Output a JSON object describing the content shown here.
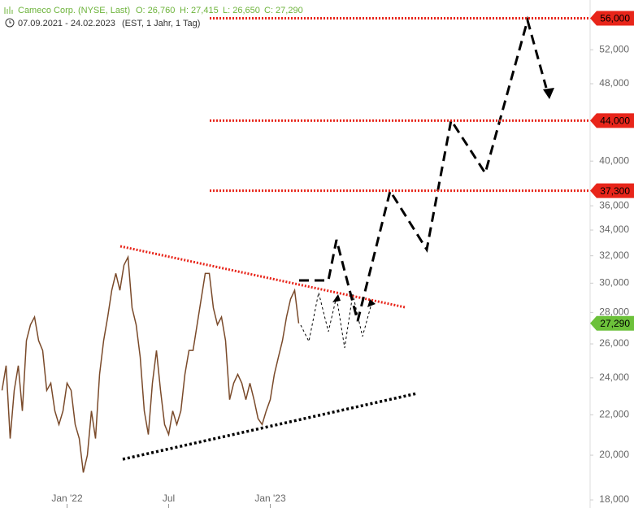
{
  "chart_data": {
    "type": "line",
    "header": {
      "name": "Cameco Corp. (NYSE, Last)",
      "open": "O: 26,760",
      "high": "H: 27,415",
      "low": "L: 26,650",
      "close": "C: 27,290",
      "range": "07.09.2021 - 24.02.2023",
      "info": "(EST, 1 Jahr, 1 Tag)"
    },
    "categories": [
      null,
      null,
      null,
      null,
      null,
      null,
      null,
      null,
      null,
      null,
      null,
      null,
      null,
      null,
      null,
      null,
      "Jan '22",
      null,
      null,
      null,
      null,
      null,
      null,
      null,
      null,
      null,
      null,
      null,
      null,
      null,
      null,
      null,
      null,
      null,
      null,
      null,
      null,
      null,
      null,
      null,
      null,
      "Jul",
      null,
      null,
      null,
      null,
      null,
      null,
      null,
      null,
      null,
      null,
      null,
      null,
      null,
      null,
      null,
      null,
      null,
      null,
      null,
      null,
      null,
      null,
      null,
      null,
      "Jan '23",
      null,
      null,
      null,
      null,
      null,
      null,
      null
    ],
    "series": [
      {
        "name": "Cameco Corp.",
        "color": "#7a4a2a",
        "values": [
          23300,
          24700,
          20800,
          23300,
          24700,
          22200,
          26200,
          27200,
          27700,
          26200,
          25600,
          23300,
          23700,
          22200,
          21500,
          22200,
          23700,
          23300,
          21500,
          20800,
          19200,
          20000,
          22200,
          20800,
          24200,
          26200,
          27700,
          29500,
          30700,
          29500,
          31300,
          31900,
          28300,
          27200,
          25200,
          22200,
          21000,
          23700,
          25600,
          23300,
          21500,
          21000,
          22200,
          21500,
          22200,
          24200,
          25600,
          25600,
          27200,
          28900,
          30700,
          30700,
          28300,
          27200,
          27700,
          26200,
          22800,
          23700,
          24200,
          23700,
          22800,
          23700,
          22800,
          21800,
          21500,
          22200,
          22800,
          24200,
          25200,
          26200,
          27700,
          28900,
          29500,
          27290
        ]
      }
    ],
    "log_scale": true,
    "ylim": [
      17660,
      58470
    ],
    "yticks": [
      {
        "value": 18000,
        "label": "18,000"
      },
      {
        "value": 20000,
        "label": "20,000"
      },
      {
        "value": 22000,
        "label": "22,000"
      },
      {
        "value": 24000,
        "label": "24,000"
      },
      {
        "value": 26000,
        "label": "26,000"
      },
      {
        "value": 28000,
        "label": "28,000"
      },
      {
        "value": 30000,
        "label": "30,000"
      },
      {
        "value": 32000,
        "label": "32,000"
      },
      {
        "value": 34000,
        "label": "34,000"
      },
      {
        "value": 36000,
        "label": "36,000"
      },
      {
        "value": 40000,
        "label": "40,000"
      },
      {
        "value": 48000,
        "label": "48,000"
      },
      {
        "value": 52000,
        "label": "52,000"
      }
    ],
    "levels": [
      {
        "value": 56000,
        "label": "56,000"
      },
      {
        "value": 44000,
        "label": "44,000"
      },
      {
        "value": 37300,
        "label": "37,300"
      }
    ],
    "level_color": "#e8251a",
    "last_price": {
      "value": 27290,
      "label": "27,290"
    },
    "last_price_color": "#6cc13a"
  }
}
